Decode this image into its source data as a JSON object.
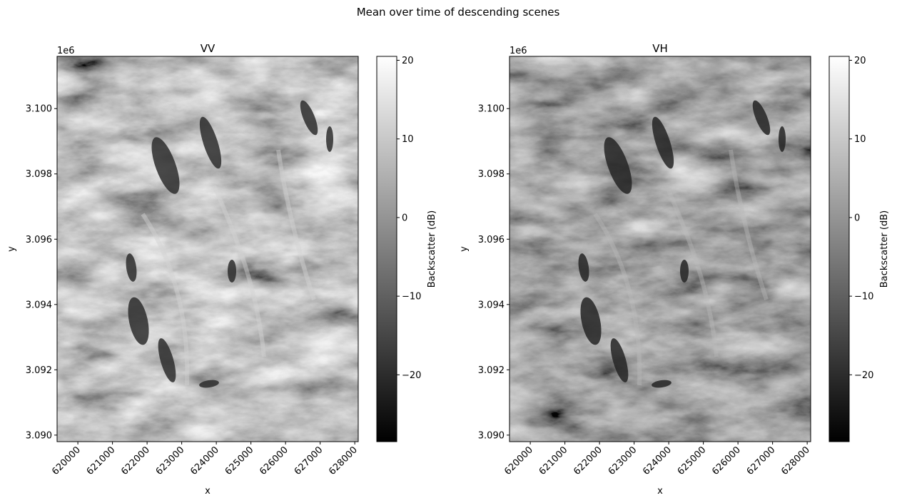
{
  "figure": {
    "suptitle": "Mean over time of descending scenes"
  },
  "chart_data": [
    {
      "type": "heatmap",
      "title": "VV",
      "xlabel": "x",
      "ylabel": "y",
      "y_offset_label": "1e6",
      "xlim": [
        619400,
        628100
      ],
      "ylim": [
        3.0898,
        3.1016
      ],
      "x_ticks": [
        620000,
        621000,
        622000,
        623000,
        624000,
        625000,
        626000,
        627000,
        628000
      ],
      "x_tick_labels": [
        "620000",
        "621000",
        "622000",
        "623000",
        "624000",
        "625000",
        "626000",
        "627000",
        "628000"
      ],
      "y_ticks": [
        3.09,
        3.092,
        3.094,
        3.096,
        3.098,
        3.1
      ],
      "y_tick_labels": [
        "3.090",
        "3.092",
        "3.094",
        "3.096",
        "3.098",
        "3.100"
      ],
      "colormap": "gray",
      "colorbar": {
        "label": "Backscatter (dB)",
        "range": [
          -28.5,
          20.5
        ],
        "ticks": [
          20,
          10,
          0,
          -10,
          -20
        ],
        "tick_labels": [
          "20",
          "10",
          "0",
          "−10",
          "−20"
        ]
      }
    },
    {
      "type": "heatmap",
      "title": "VH",
      "xlabel": "x",
      "ylabel": "y",
      "y_offset_label": "1e6",
      "xlim": [
        619400,
        628100
      ],
      "ylim": [
        3.0898,
        3.1016
      ],
      "x_ticks": [
        620000,
        621000,
        622000,
        623000,
        624000,
        625000,
        626000,
        627000,
        628000
      ],
      "x_tick_labels": [
        "620000",
        "621000",
        "622000",
        "623000",
        "624000",
        "625000",
        "626000",
        "627000",
        "628000"
      ],
      "y_ticks": [
        3.09,
        3.092,
        3.094,
        3.096,
        3.098,
        3.1
      ],
      "y_tick_labels": [
        "3.090",
        "3.092",
        "3.094",
        "3.096",
        "3.098",
        "3.100"
      ],
      "colormap": "gray",
      "colorbar": {
        "label": "Backscatter (dB)",
        "range": [
          -28.5,
          20.5
        ],
        "ticks": [
          20,
          10,
          0,
          -10,
          -20
        ],
        "tick_labels": [
          "20",
          "10",
          "0",
          "−10",
          "−20"
        ]
      }
    }
  ]
}
